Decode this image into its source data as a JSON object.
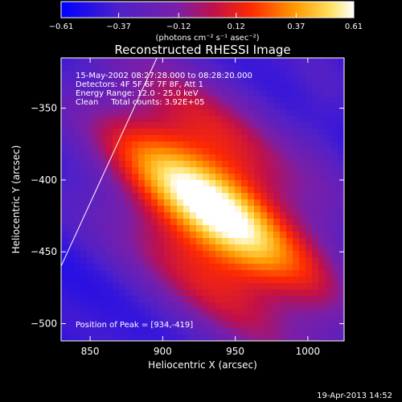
{
  "footer": {
    "date": "19-Apr-2013 14:52"
  },
  "chart_data": {
    "type": "heatmap",
    "title": "Reconstructed RHESSI Image",
    "xlabel": "Heliocentric X (arcsec)",
    "ylabel": "Heliocentric Y (arcsec)",
    "xlim": [
      830,
      1025
    ],
    "ylim": [
      -512,
      -315
    ],
    "xticks": [
      {
        "value": 850,
        "label": "850"
      },
      {
        "value": 900,
        "label": "900"
      },
      {
        "value": 950,
        "label": "950"
      },
      {
        "value": 1000,
        "label": "1000"
      }
    ],
    "yticks": [
      {
        "value": -350,
        "label": "−350"
      },
      {
        "value": -400,
        "label": "−400"
      },
      {
        "value": -450,
        "label": "−450"
      },
      {
        "value": -500,
        "label": "−500"
      }
    ],
    "colorbar": {
      "range": [
        -0.61,
        0.61
      ],
      "ticks": [
        {
          "value": -0.61,
          "label": "−0.61"
        },
        {
          "value": -0.37,
          "label": "−0.37"
        },
        {
          "value": -0.12,
          "label": "−0.12"
        },
        {
          "value": 0.12,
          "label": "0.12"
        },
        {
          "value": 0.37,
          "label": "0.37"
        },
        {
          "value": 0.61,
          "label": "0.61"
        }
      ],
      "unit_label": "(photons cm⁻² s⁻¹ asec⁻²)"
    },
    "annotations": [
      "15-May-2002 08:27:28.000 to 08:28:20.000",
      "Detectors: 4F 5F 6F 7F 8F, Att 1",
      "Energy Range: 12.0 - 25.0 keV",
      "Clean     Total counts: 3.92E+05"
    ],
    "peak_label": "Position of Peak = [934,-419]",
    "peak": {
      "x": 934,
      "y": -419
    },
    "limb_line": [
      {
        "x": 830,
        "y": -460
      },
      {
        "x": 896,
        "y": -315
      }
    ]
  }
}
